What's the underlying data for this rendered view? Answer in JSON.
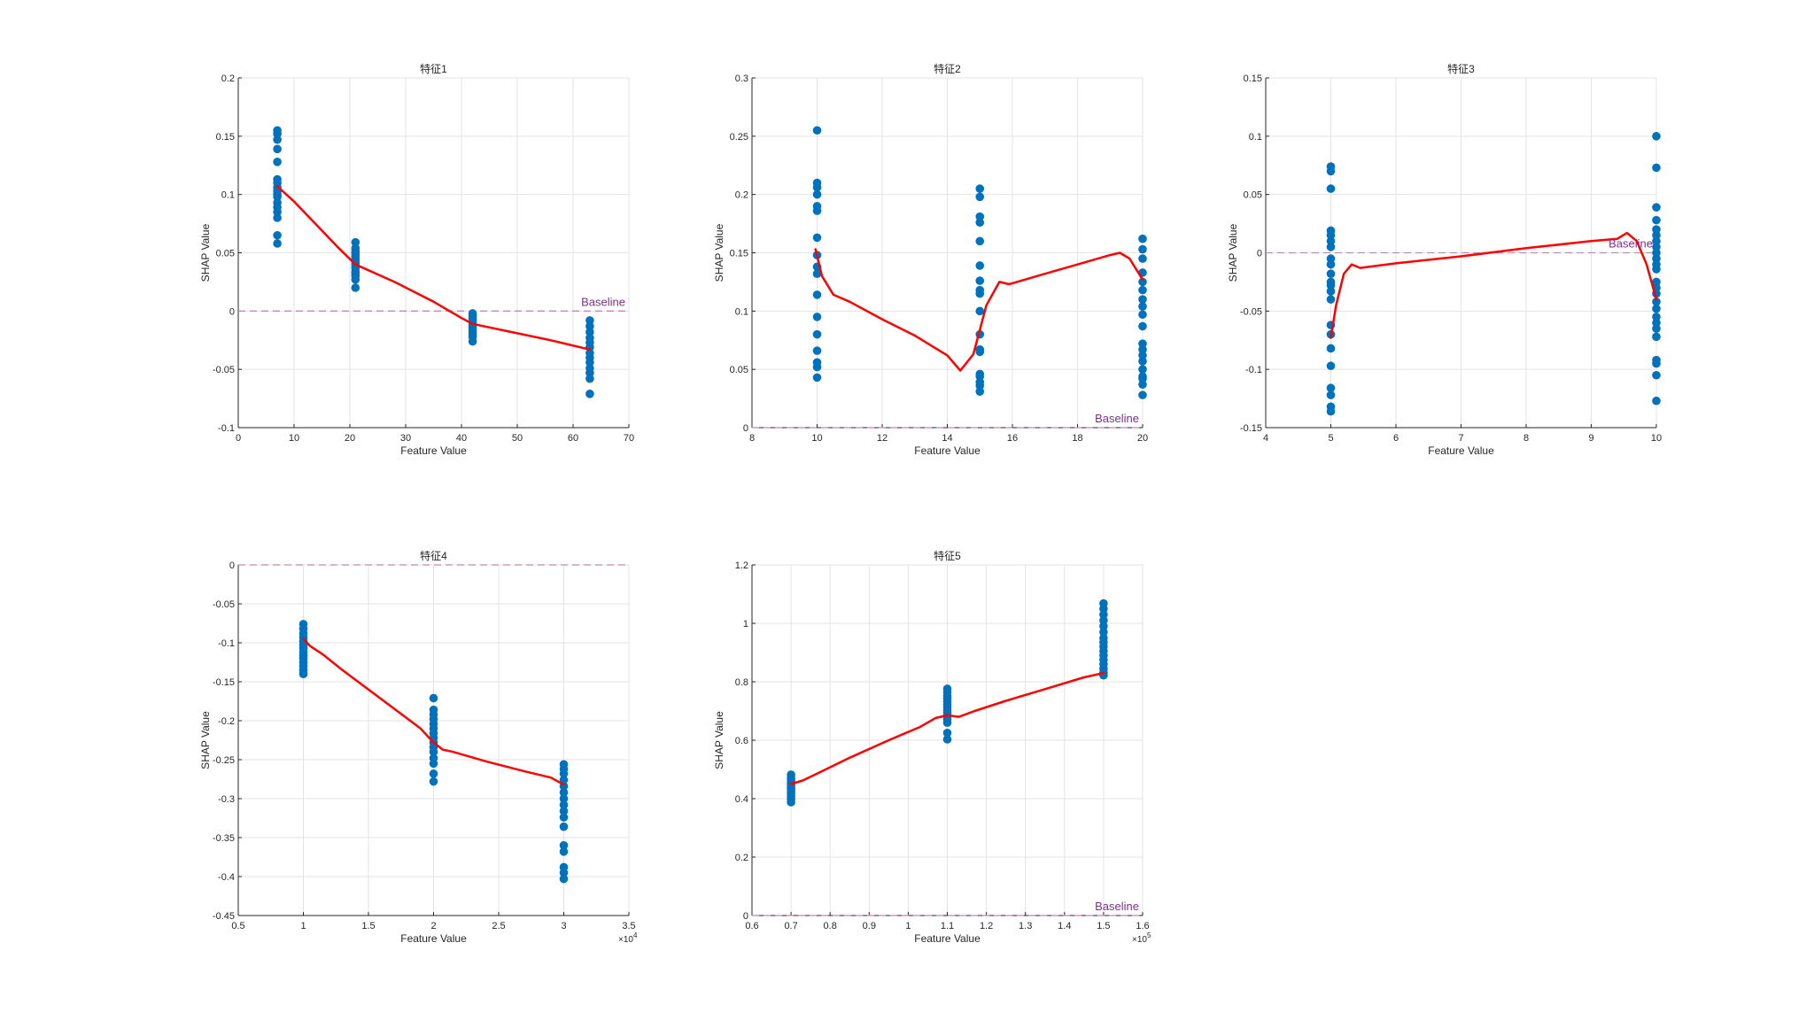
{
  "chart_data": [
    {
      "type": "scatter",
      "title": "特征1",
      "xlabel": "Feature Value",
      "ylabel": "SHAP Value",
      "xlim": [
        0,
        70
      ],
      "ylim": [
        -0.1,
        0.2
      ],
      "xticks": [
        0,
        10,
        20,
        30,
        40,
        50,
        60,
        70
      ],
      "yticks": [
        -0.1,
        -0.05,
        0,
        0.05,
        0.1,
        0.15,
        0.2
      ],
      "xtick_labels": [
        "0",
        "10",
        "20",
        "30",
        "40",
        "50",
        "60",
        "70"
      ],
      "ytick_labels": [
        "-0.1",
        "-0.05",
        "0",
        "0.05",
        "0.1",
        "0.15",
        "0.2"
      ],
      "x_exponent": "",
      "baseline": {
        "value": 0,
        "label": "Baseline"
      },
      "scatter_groups": [
        {
          "x": 7,
          "y": [
            0.155,
            0.152,
            0.147,
            0.139,
            0.128,
            0.113,
            0.11,
            0.106,
            0.103,
            0.1,
            0.098,
            0.093,
            0.089,
            0.085,
            0.08,
            0.065,
            0.058
          ]
        },
        {
          "x": 21,
          "y": [
            0.059,
            0.054,
            0.051,
            0.049,
            0.047,
            0.045,
            0.043,
            0.041,
            0.039,
            0.037,
            0.034,
            0.032,
            0.03,
            0.027,
            0.02
          ]
        },
        {
          "x": 42,
          "y": [
            -0.002,
            -0.004,
            -0.006,
            -0.008,
            -0.01,
            -0.012,
            -0.014,
            -0.016,
            -0.018,
            -0.02,
            -0.022,
            -0.026
          ]
        },
        {
          "x": 63,
          "y": [
            -0.008,
            -0.013,
            -0.018,
            -0.023,
            -0.027,
            -0.031,
            -0.036,
            -0.04,
            -0.044,
            -0.049,
            -0.053,
            -0.058,
            -0.071
          ]
        }
      ],
      "trend": {
        "x": [
          7,
          10,
          14,
          18,
          21,
          28,
          35,
          40,
          42,
          50,
          56,
          63
        ],
        "y": [
          0.107,
          0.094,
          0.074,
          0.054,
          0.04,
          0.025,
          0.008,
          -0.006,
          -0.011,
          -0.019,
          -0.025,
          -0.033
        ]
      }
    },
    {
      "type": "scatter",
      "title": "特征2",
      "xlabel": "Feature Value",
      "ylabel": "SHAP Value",
      "xlim": [
        8,
        20
      ],
      "ylim": [
        0,
        0.3
      ],
      "xticks": [
        8,
        10,
        12,
        14,
        16,
        18,
        20
      ],
      "yticks": [
        0,
        0.05,
        0.1,
        0.15,
        0.2,
        0.25,
        0.3
      ],
      "xtick_labels": [
        "8",
        "10",
        "12",
        "14",
        "16",
        "18",
        "20"
      ],
      "ytick_labels": [
        "0",
        "0.05",
        "0.1",
        "0.15",
        "0.2",
        "0.25",
        "0.3"
      ],
      "x_exponent": "",
      "baseline": {
        "value": 0,
        "label": "Baseline"
      },
      "scatter_groups": [
        {
          "x": 10,
          "y": [
            0.255,
            0.21,
            0.206,
            0.2,
            0.19,
            0.186,
            0.163,
            0.148,
            0.138,
            0.132,
            0.114,
            0.095,
            0.08,
            0.066,
            0.056,
            0.052,
            0.043
          ]
        },
        {
          "x": 15,
          "y": [
            0.205,
            0.198,
            0.181,
            0.176,
            0.16,
            0.139,
            0.126,
            0.118,
            0.115,
            0.1,
            0.08,
            0.067,
            0.065,
            0.046,
            0.044,
            0.039,
            0.036,
            0.031
          ]
        },
        {
          "x": 20,
          "y": [
            0.162,
            0.153,
            0.145,
            0.133,
            0.125,
            0.118,
            0.11,
            0.104,
            0.097,
            0.087,
            0.072,
            0.067,
            0.062,
            0.057,
            0.05,
            0.044,
            0.042,
            0.037,
            0.028
          ]
        }
      ],
      "trend": {
        "x": [
          9.95,
          10.15,
          10.5,
          11,
          12,
          13,
          14,
          14.4,
          14.8,
          15.2,
          15.6,
          15.9,
          17,
          18,
          19,
          19.3,
          19.6,
          20
        ],
        "y": [
          0.153,
          0.13,
          0.114,
          0.108,
          0.093,
          0.079,
          0.062,
          0.049,
          0.063,
          0.105,
          0.125,
          0.123,
          0.132,
          0.14,
          0.148,
          0.15,
          0.145,
          0.127
        ]
      }
    },
    {
      "type": "scatter",
      "title": "特征3",
      "xlabel": "Feature Value",
      "ylabel": "SHAP Value",
      "xlim": [
        4,
        10
      ],
      "ylim": [
        -0.15,
        0.15
      ],
      "xticks": [
        4,
        5,
        6,
        7,
        8,
        9,
        10
      ],
      "yticks": [
        -0.15,
        -0.1,
        -0.05,
        0,
        0.05,
        0.1,
        0.15
      ],
      "xtick_labels": [
        "4",
        "5",
        "6",
        "7",
        "8",
        "9",
        "10"
      ],
      "ytick_labels": [
        "-0.15",
        "-0.1",
        "-0.05",
        "0",
        "0.05",
        "0.1",
        "0.15"
      ],
      "x_exponent": "",
      "baseline": {
        "value": 0,
        "label": "Baseline"
      },
      "scatter_groups": [
        {
          "x": 5,
          "y": [
            0.074,
            0.07,
            0.055,
            0.019,
            0.015,
            0.01,
            0.005,
            -0.005,
            -0.01,
            -0.018,
            -0.025,
            -0.028,
            -0.033,
            -0.04,
            -0.062,
            -0.07,
            -0.082,
            -0.097,
            -0.116,
            -0.122,
            -0.132,
            -0.136
          ]
        },
        {
          "x": 10,
          "y": [
            0.1,
            0.073,
            0.039,
            0.028,
            0.02,
            0.015,
            0.01,
            0.005,
            0.0,
            -0.005,
            -0.01,
            -0.014,
            -0.025,
            -0.03,
            -0.035,
            -0.042,
            -0.048,
            -0.055,
            -0.06,
            -0.065,
            -0.072,
            -0.092,
            -0.095,
            -0.105,
            -0.127
          ]
        }
      ],
      "trend": {
        "x": [
          5,
          5.08,
          5.2,
          5.32,
          5.45,
          6,
          7,
          8,
          9,
          9.4,
          9.55,
          9.7,
          9.85,
          10
        ],
        "y": [
          -0.073,
          -0.045,
          -0.018,
          -0.01,
          -0.013,
          -0.009,
          -0.003,
          0.004,
          0.01,
          0.012,
          0.017,
          0.01,
          -0.01,
          -0.04
        ]
      }
    },
    {
      "type": "scatter",
      "title": "特征4",
      "xlabel": "Feature Value",
      "ylabel": "SHAP Value",
      "xlim": [
        5000,
        35000
      ],
      "ylim": [
        -0.45,
        0
      ],
      "xticks": [
        5000,
        10000,
        15000,
        20000,
        25000,
        30000,
        35000
      ],
      "yticks": [
        -0.45,
        -0.4,
        -0.35,
        -0.3,
        -0.25,
        -0.2,
        -0.15,
        -0.1,
        -0.05,
        0
      ],
      "xtick_labels": [
        "0.5",
        "1",
        "1.5",
        "2",
        "2.5",
        "3",
        "3.5"
      ],
      "ytick_labels": [
        "-0.45",
        "-0.4",
        "-0.35",
        "-0.3",
        "-0.25",
        "-0.2",
        "-0.15",
        "-0.1",
        "-0.05",
        "0"
      ],
      "x_exponent": "4",
      "baseline": {
        "value": 0,
        "label": ""
      },
      "scatter_groups": [
        {
          "x": 10000,
          "y": [
            -0.076,
            -0.082,
            -0.088,
            -0.093,
            -0.098,
            -0.103,
            -0.107,
            -0.112,
            -0.116,
            -0.12,
            -0.125,
            -0.13,
            -0.135,
            -0.14
          ]
        },
        {
          "x": 20000,
          "y": [
            -0.171,
            -0.186,
            -0.192,
            -0.198,
            -0.204,
            -0.21,
            -0.216,
            -0.222,
            -0.228,
            -0.234,
            -0.24,
            -0.248,
            -0.255,
            -0.268,
            -0.278
          ]
        },
        {
          "x": 30000,
          "y": [
            -0.256,
            -0.262,
            -0.268,
            -0.276,
            -0.284,
            -0.292,
            -0.3,
            -0.308,
            -0.316,
            -0.324,
            -0.336,
            -0.36,
            -0.368,
            -0.388,
            -0.395,
            -0.403
          ]
        }
      ],
      "trend": {
        "x": [
          10000,
          10500,
          11500,
          13000,
          15000,
          17000,
          19000,
          20000,
          20700,
          21500,
          24000,
          27000,
          29000,
          30000
        ],
        "y": [
          -0.095,
          -0.104,
          -0.115,
          -0.135,
          -0.16,
          -0.185,
          -0.21,
          -0.228,
          -0.237,
          -0.24,
          -0.252,
          -0.265,
          -0.273,
          -0.282
        ]
      }
    },
    {
      "type": "scatter",
      "title": "特征5",
      "xlabel": "Feature Value",
      "ylabel": "SHAP Value",
      "xlim": [
        60000,
        160000
      ],
      "ylim": [
        0,
        1.2
      ],
      "xticks": [
        60000,
        70000,
        80000,
        90000,
        100000,
        110000,
        120000,
        130000,
        140000,
        150000,
        160000
      ],
      "yticks": [
        0,
        0.2,
        0.4,
        0.6,
        0.8,
        1,
        1.2
      ],
      "xtick_labels": [
        "0.6",
        "0.7",
        "0.8",
        "0.9",
        "1",
        "1.1",
        "1.2",
        "1.3",
        "1.4",
        "1.5",
        "1.6"
      ],
      "ytick_labels": [
        "0",
        "0.2",
        "0.4",
        "0.6",
        "0.8",
        "1",
        "1.2"
      ],
      "x_exponent": "5",
      "baseline": {
        "value": 0,
        "label": "Baseline"
      },
      "scatter_groups": [
        {
          "x": 70000,
          "y": [
            0.482,
            0.47,
            0.462,
            0.455,
            0.448,
            0.441,
            0.434,
            0.426,
            0.418,
            0.408,
            0.398,
            0.388
          ]
        },
        {
          "x": 110000,
          "y": [
            0.776,
            0.765,
            0.752,
            0.742,
            0.732,
            0.722,
            0.712,
            0.702,
            0.692,
            0.682,
            0.672,
            0.66,
            0.625,
            0.603
          ]
        },
        {
          "x": 150000,
          "y": [
            1.068,
            1.05,
            1.03,
            1.01,
            0.99,
            0.97,
            0.95,
            0.935,
            0.92,
            0.905,
            0.89,
            0.875,
            0.86,
            0.845,
            0.832,
            0.822
          ]
        }
      ],
      "trend": {
        "x": [
          70000,
          73000,
          77000,
          85000,
          95000,
          103000,
          107000,
          110000,
          113000,
          117000,
          125000,
          135000,
          145000,
          150000
        ],
        "y": [
          0.45,
          0.462,
          0.488,
          0.54,
          0.6,
          0.645,
          0.676,
          0.685,
          0.68,
          0.7,
          0.735,
          0.775,
          0.815,
          0.83
        ]
      }
    }
  ],
  "colors": {
    "points": "#0072bd",
    "trend": "#ff0000",
    "baseline": "#c08ab8",
    "baseline_text": "#7e2f8e",
    "grid": "#e3e3e3",
    "axis": "#262626"
  }
}
